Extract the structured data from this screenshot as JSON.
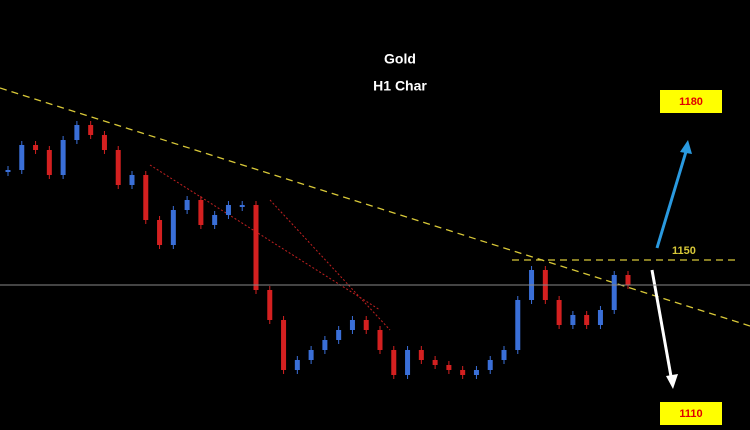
{
  "chart_data": {
    "type": "candlestick",
    "title": "Gold",
    "subtitle": "H1 Char",
    "close": [
      1168,
      1173,
      1172,
      1167,
      1174,
      1177,
      1175,
      1172,
      1165,
      1167,
      1158,
      1153,
      1160,
      1162,
      1157,
      1159,
      1161,
      1161,
      1144,
      1138,
      1128,
      1130,
      1132,
      1134,
      1136,
      1138,
      1136,
      1132,
      1127,
      1132,
      1130,
      1129,
      1128,
      1127,
      1128,
      1130,
      1132,
      1142,
      1148,
      1142,
      1137,
      1139,
      1137,
      1140,
      1147,
      1145
    ],
    "ylim": [
      1116,
      1202
    ],
    "up_color": "#3a6fd8",
    "down_color": "#d42020",
    "resistance": 1150,
    "resistance_color": "#d8c838",
    "target_up": 1180,
    "target_down": 1110,
    "target_box_color": "#ffff00",
    "target_text_color": "#e00000"
  }
}
